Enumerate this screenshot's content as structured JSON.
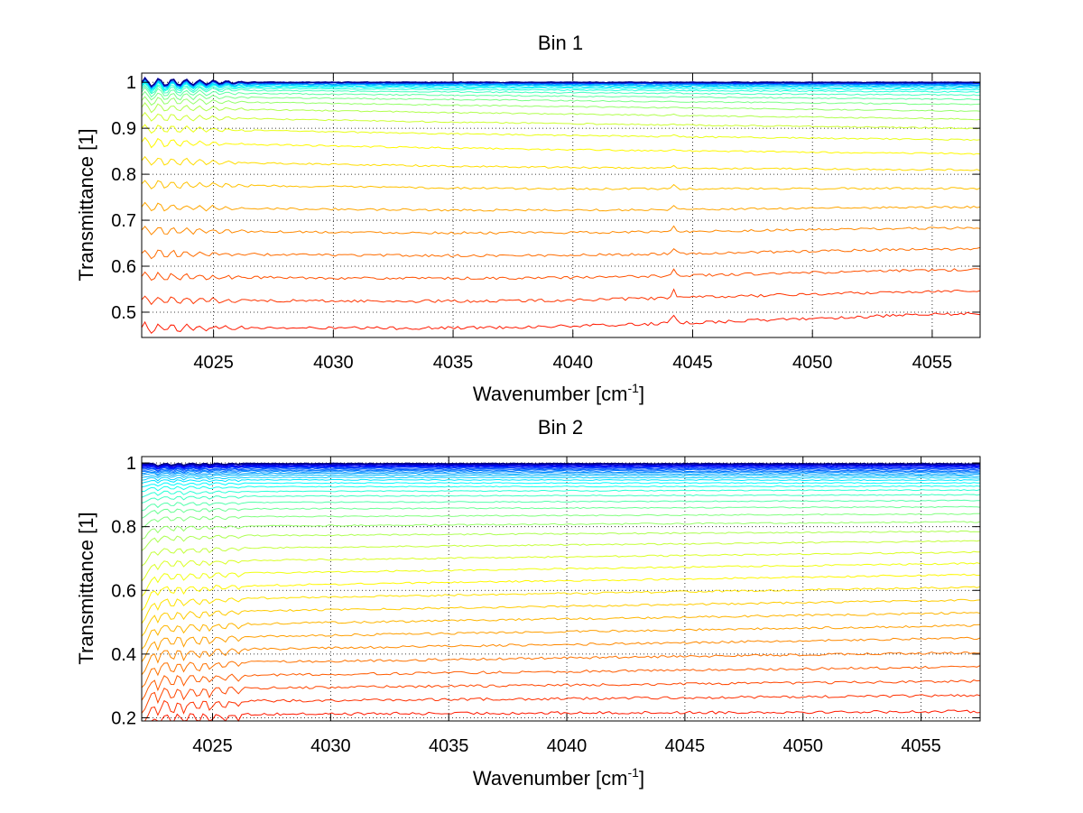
{
  "chart_data": [
    {
      "type": "line",
      "title": "Bin 1",
      "xlabel": "Wavenumber [cm",
      "xlabel_superscript": "-1",
      "xlabel_suffix": "]",
      "ylabel": "Transmittance [1]",
      "xlim": [
        4022,
        4057
      ],
      "ylim": [
        0.445,
        1.02
      ],
      "xticks": [
        4025,
        4030,
        4035,
        4040,
        4045,
        4050,
        4055
      ],
      "yticks": [
        0.5,
        0.6,
        0.7,
        0.8,
        0.9,
        1
      ],
      "ytick_labels": [
        "0.5",
        "0.6",
        "0.7",
        "0.8",
        "0.9",
        "1"
      ],
      "grid": true,
      "grid_style": "dotted",
      "series_count": 32,
      "colormap": "jet",
      "baseline_start": [
        0.47,
        0.53,
        0.58,
        0.63,
        0.68,
        0.73,
        0.78,
        0.83,
        0.87,
        0.9,
        0.925,
        0.945,
        0.96,
        0.97,
        0.978,
        0.984,
        0.988,
        0.991,
        0.993,
        0.995,
        0.996,
        0.997,
        0.998,
        0.9985,
        0.999,
        0.9993,
        0.9995,
        0.9997,
        0.9998,
        0.9999,
        1.0,
        1.0
      ],
      "baseline_end": [
        0.5,
        0.55,
        0.595,
        0.64,
        0.685,
        0.73,
        0.77,
        0.81,
        0.845,
        0.875,
        0.9,
        0.92,
        0.937,
        0.952,
        0.963,
        0.972,
        0.979,
        0.984,
        0.988,
        0.991,
        0.993,
        0.995,
        0.996,
        0.997,
        0.998,
        0.9985,
        0.999,
        0.9993,
        0.9995,
        0.9997,
        0.9999,
        1.0
      ],
      "sag_depth": 0.03,
      "sag_center": 4038,
      "peak_position": 4044.2,
      "peak_height": 0.035,
      "left_edge_ripple": 0.01,
      "noise_amplitude": 0.004
    },
    {
      "type": "line",
      "title": "Bin 2",
      "xlabel": "Wavenumber [cm",
      "xlabel_superscript": "-1",
      "xlabel_suffix": "]",
      "ylabel": "Transmittance [1]",
      "xlim": [
        4022,
        4057.5
      ],
      "ylim": [
        0.19,
        1.02
      ],
      "xticks": [
        4025,
        4030,
        4035,
        4040,
        4045,
        4050,
        4055
      ],
      "yticks": [
        0.2,
        0.4,
        0.6,
        0.8,
        1
      ],
      "ytick_labels": [
        "0.2",
        "0.4",
        "0.6",
        "0.8",
        "1"
      ],
      "grid": true,
      "grid_style": "dotted",
      "series_count": 40,
      "colormap": "jet",
      "baseline_start": [
        0.21,
        0.25,
        0.29,
        0.33,
        0.37,
        0.41,
        0.45,
        0.49,
        0.53,
        0.57,
        0.61,
        0.65,
        0.69,
        0.73,
        0.77,
        0.8,
        0.83,
        0.855,
        0.875,
        0.895,
        0.91,
        0.925,
        0.937,
        0.947,
        0.955,
        0.962,
        0.968,
        0.973,
        0.977,
        0.981,
        0.984,
        0.987,
        0.989,
        0.991,
        0.993,
        0.995,
        0.996,
        0.997,
        0.998,
        0.999
      ],
      "baseline_end": [
        0.22,
        0.27,
        0.315,
        0.36,
        0.405,
        0.45,
        0.49,
        0.53,
        0.57,
        0.61,
        0.65,
        0.685,
        0.72,
        0.755,
        0.785,
        0.815,
        0.84,
        0.862,
        0.882,
        0.9,
        0.915,
        0.927,
        0.937,
        0.946,
        0.953,
        0.959,
        0.964,
        0.969,
        0.973,
        0.977,
        0.981,
        0.984,
        0.987,
        0.99,
        0.992,
        0.994,
        0.995,
        0.996,
        0.997,
        0.998
      ],
      "left_edge_dip": 0.12,
      "absorption_lines": [
        4022.7,
        4023.3,
        4023.8,
        4024.4,
        4024.9,
        4025.5,
        4026.1
      ],
      "absorption_depth": 0.05,
      "noise_amplitude": 0.004
    }
  ]
}
